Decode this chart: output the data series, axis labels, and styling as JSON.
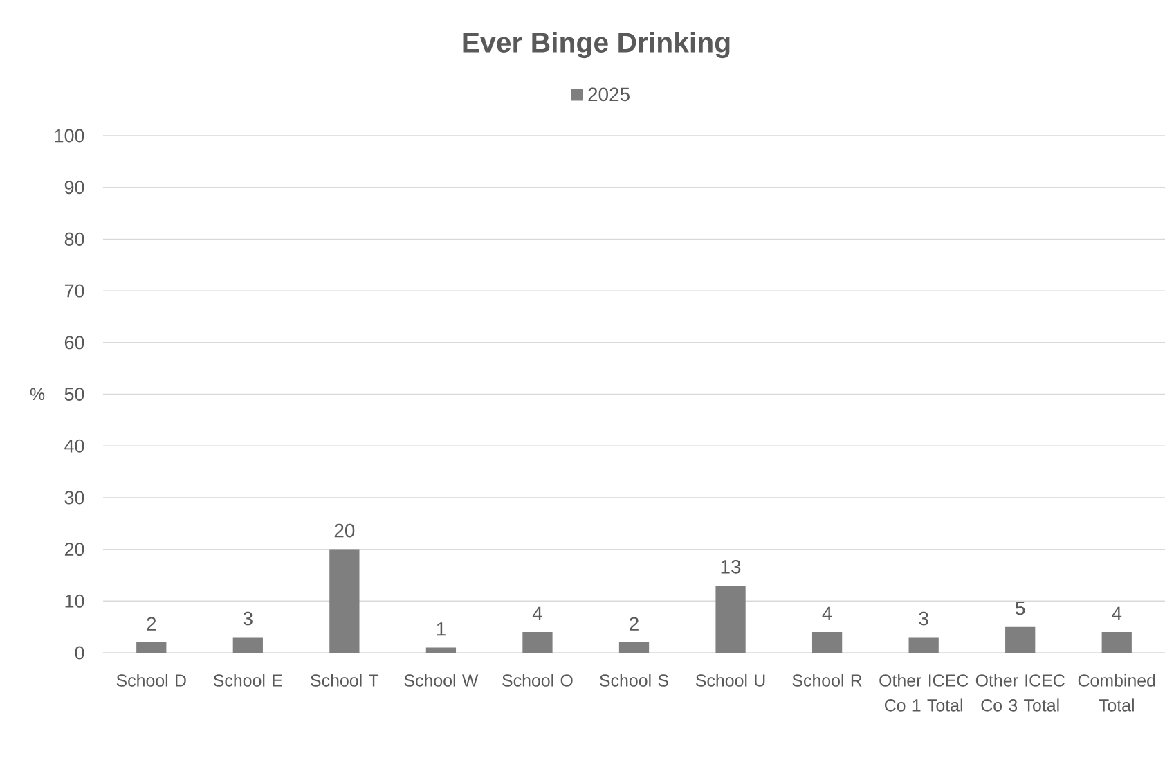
{
  "chart_data": {
    "type": "bar",
    "title": "Ever Binge Drinking",
    "ylabel": "%",
    "categories": [
      "School D",
      "School E",
      "School T",
      "School W",
      "School O",
      "School S",
      "School U",
      "School R",
      "Other ICEC Co 1 Total",
      "Other ICEC Co 3 Total",
      "Combined Total"
    ],
    "series": [
      {
        "name": "2025",
        "color": "#7f7f7f",
        "values": [
          2,
          3,
          20,
          1,
          4,
          2,
          13,
          4,
          3,
          5,
          4
        ]
      }
    ],
    "ylim": [
      0,
      100
    ],
    "yticks": [
      0,
      10,
      20,
      30,
      40,
      50,
      60,
      70,
      80,
      90,
      100
    ],
    "grid": "y",
    "legend": "top",
    "data_labels": true
  }
}
